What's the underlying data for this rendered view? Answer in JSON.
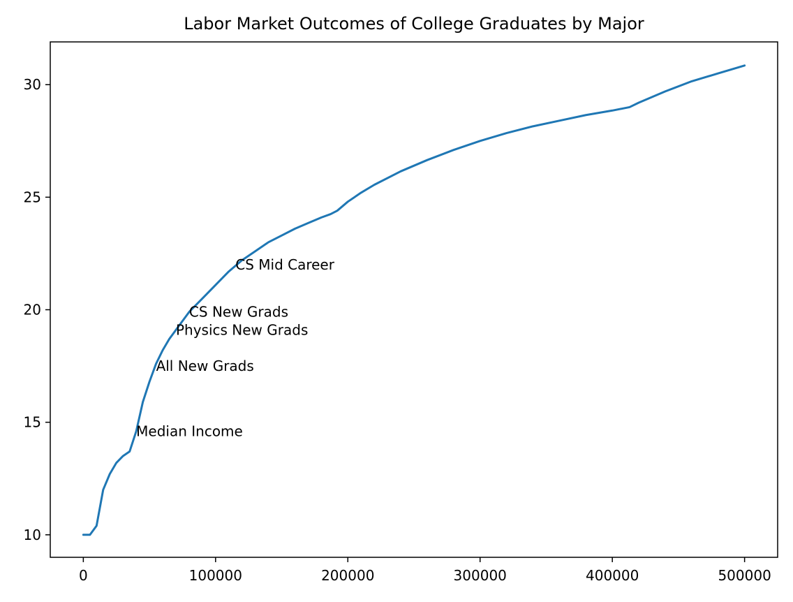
{
  "chart_data": {
    "type": "line",
    "title": "Labor Market Outcomes of College Graduates by Major",
    "xlabel": "",
    "ylabel": "",
    "xlim": [
      -25000,
      525000
    ],
    "ylim": [
      9.0,
      31.9
    ],
    "xticks": [
      0,
      100000,
      200000,
      300000,
      400000,
      500000
    ],
    "yticks": [
      10,
      15,
      20,
      25,
      30
    ],
    "grid": false,
    "color": "#1f77b4",
    "series": [
      {
        "x": [
          0,
          5000,
          10000,
          15000,
          20000,
          25000,
          30000,
          35000,
          40000,
          45000,
          50000,
          55000,
          60000,
          65000,
          70000,
          75000,
          80000,
          90000,
          100000,
          110000,
          120000,
          130000,
          140000,
          150000,
          160000,
          170000,
          180000,
          187000,
          192000,
          200000,
          210000,
          220000,
          240000,
          260000,
          280000,
          300000,
          320000,
          340000,
          360000,
          380000,
          400000,
          413000,
          420000,
          440000,
          460000,
          480000,
          500000
        ],
        "y": [
          10.0,
          10.0,
          10.4,
          12.0,
          12.7,
          13.2,
          13.5,
          13.7,
          14.6,
          15.9,
          16.8,
          17.6,
          18.2,
          18.7,
          19.1,
          19.5,
          19.9,
          20.5,
          21.1,
          21.7,
          22.2,
          22.6,
          23.0,
          23.3,
          23.6,
          23.85,
          24.1,
          24.25,
          24.4,
          24.8,
          25.2,
          25.55,
          26.15,
          26.65,
          27.1,
          27.5,
          27.85,
          28.15,
          28.4,
          28.65,
          28.85,
          29.0,
          29.2,
          29.7,
          30.15,
          30.5,
          30.85
        ]
      }
    ],
    "annotations": [
      {
        "text": "Median Income",
        "x": 40000,
        "y": 14.6
      },
      {
        "text": "All New Grads",
        "x": 55000,
        "y": 17.5
      },
      {
        "text": "Physics New Grads",
        "x": 70000,
        "y": 19.1
      },
      {
        "text": "CS New Grads",
        "x": 80000,
        "y": 19.9
      },
      {
        "text": "CS Mid Career",
        "x": 115000,
        "y": 22.0
      }
    ]
  }
}
